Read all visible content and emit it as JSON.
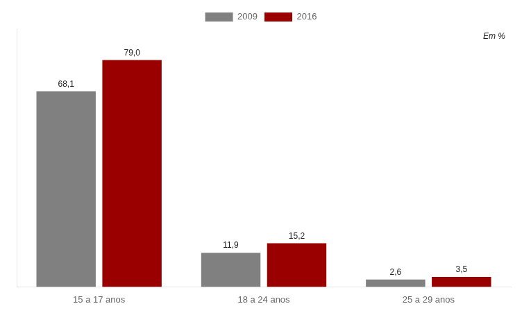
{
  "chart_data": {
    "type": "bar",
    "categories": [
      "15 a 17 anos",
      "18 a 24 anos",
      "25 a 29 anos"
    ],
    "series": [
      {
        "name": "2009",
        "color": "#808080",
        "values": [
          68.1,
          11.9,
          2.6
        ],
        "value_labels": [
          "68,1",
          "11,9",
          "2,6"
        ]
      },
      {
        "name": "2016",
        "color": "#9B0000",
        "values": [
          79.0,
          15.2,
          3.5
        ],
        "value_labels": [
          "79,0",
          "15,2",
          "3,5"
        ]
      }
    ],
    "ylim": [
      0,
      90
    ],
    "annotations": [
      "Em %"
    ],
    "data_labels": true,
    "tick_labels": "x",
    "grid": false,
    "legend": "top"
  }
}
